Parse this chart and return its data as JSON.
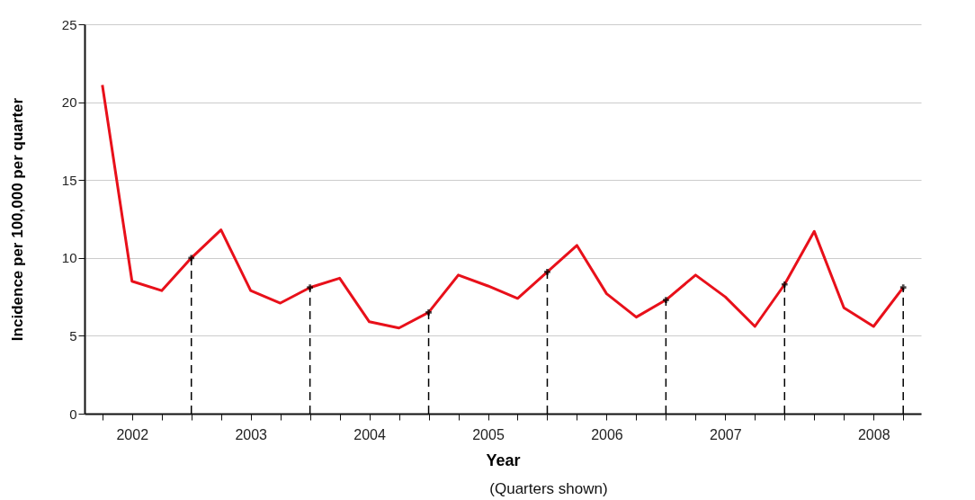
{
  "chart_data": {
    "type": "line",
    "categories": [
      null,
      "2002",
      null,
      null,
      null,
      "2003",
      null,
      null,
      null,
      "2004",
      null,
      null,
      null,
      "2005",
      null,
      null,
      null,
      "2006",
      null,
      null,
      null,
      "2007",
      null,
      null,
      null,
      null,
      "2008",
      null
    ],
    "series": [
      {
        "color": "#e8101a",
        "marker": "none",
        "line_style": "solid",
        "values": [
          21.1,
          8.5,
          7.9,
          10.0,
          11.8,
          7.9,
          7.1,
          8.1,
          8.7,
          5.9,
          5.5,
          6.5,
          8.9,
          8.2,
          7.4,
          9.1,
          10.8,
          7.7,
          6.2,
          7.3,
          8.9,
          7.5,
          5.6,
          8.3,
          11.7,
          6.8,
          5.6,
          8.1
        ]
      },
      {
        "type": "lollipop",
        "color": "#000000",
        "marker": "cross",
        "line_style": "dashed",
        "values": [
          null,
          null,
          null,
          10.0,
          null,
          null,
          null,
          8.1,
          null,
          null,
          null,
          6.5,
          null,
          null,
          null,
          9.1,
          null,
          null,
          null,
          7.3,
          null,
          null,
          null,
          8.3,
          null,
          null,
          null,
          8.1
        ]
      }
    ],
    "xlabel": "Year",
    "ylabel": "Incidence per 100,000 per quarter",
    "annotations": [
      "(Quarters shown)"
    ],
    "ylim": [
      0,
      25
    ],
    "yticks": [
      0,
      5,
      10,
      15,
      20,
      25
    ],
    "grid": "y"
  }
}
